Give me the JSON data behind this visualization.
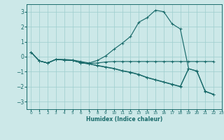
{
  "xlabel": "Humidex (Indice chaleur)",
  "xlim": [
    -0.5,
    23
  ],
  "ylim": [
    -3.5,
    3.5
  ],
  "xticks": [
    0,
    1,
    2,
    3,
    4,
    5,
    6,
    7,
    8,
    9,
    10,
    11,
    12,
    13,
    14,
    15,
    16,
    17,
    18,
    19,
    20,
    21,
    22,
    23
  ],
  "yticks": [
    -3,
    -2,
    -1,
    0,
    1,
    2,
    3
  ],
  "background_color": "#cce8e8",
  "grid_color": "#9ecece",
  "line_color": "#1a6b6b",
  "line1_x": [
    0,
    1,
    2,
    3,
    4,
    5,
    6,
    7,
    8,
    9,
    10,
    11,
    12,
    13,
    14,
    15,
    16,
    17,
    18,
    19
  ],
  "line1_y": [
    0.3,
    -0.28,
    -0.42,
    -0.18,
    -0.18,
    -0.22,
    -0.32,
    -0.42,
    -0.25,
    0.05,
    0.5,
    0.9,
    1.35,
    2.3,
    2.6,
    3.1,
    3.0,
    2.2,
    1.85,
    -0.8
  ],
  "line2_x": [
    0,
    1,
    2,
    3,
    4,
    5,
    6,
    7,
    8,
    9,
    10,
    11,
    12,
    13,
    14,
    15,
    16,
    17,
    18,
    19,
    20,
    21,
    22
  ],
  "line2_y": [
    0.3,
    -0.28,
    -0.42,
    -0.18,
    -0.22,
    -0.25,
    -0.4,
    -0.45,
    -0.42,
    -0.35,
    -0.32,
    -0.32,
    -0.32,
    -0.32,
    -0.32,
    -0.32,
    -0.32,
    -0.32,
    -0.32,
    -0.32,
    -0.32,
    -0.32,
    -0.32
  ],
  "line3_x": [
    0,
    1,
    2,
    3,
    4,
    5,
    6,
    7,
    8,
    9,
    10,
    11,
    12,
    13,
    14,
    15,
    16,
    17,
    18,
    19,
    20,
    21,
    22
  ],
  "line3_y": [
    0.3,
    -0.28,
    -0.42,
    -0.18,
    -0.22,
    -0.25,
    -0.4,
    -0.48,
    -0.58,
    -0.68,
    -0.78,
    -0.93,
    -1.03,
    -1.18,
    -1.38,
    -1.53,
    -1.68,
    -1.83,
    -1.98,
    -0.8,
    -0.95,
    -2.3,
    -2.5
  ],
  "line4_x": [
    0,
    1,
    2,
    3,
    4,
    5,
    6,
    7,
    8,
    9,
    10,
    11,
    12,
    13,
    14,
    15,
    16,
    17,
    18,
    19,
    20,
    21,
    22
  ],
  "line4_y": [
    0.3,
    -0.28,
    -0.42,
    -0.18,
    -0.22,
    -0.25,
    -0.4,
    -0.48,
    -0.6,
    -0.7,
    -0.8,
    -0.95,
    -1.05,
    -1.2,
    -1.4,
    -1.55,
    -1.7,
    -1.85,
    -2.0,
    -0.8,
    -0.97,
    -2.32,
    -2.52
  ]
}
